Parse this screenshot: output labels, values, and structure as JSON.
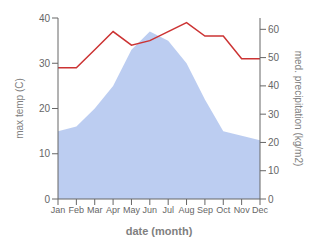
{
  "chart_data": {
    "type": "line",
    "x_label": "date (month)",
    "y_label": "max temp (C)",
    "y2_label": "med. precipitation (kg/m2)",
    "categories": [
      "Jan",
      "Feb",
      "Mar",
      "Apr",
      "May",
      "Jun",
      "Jul",
      "Aug",
      "Sep",
      "Oct",
      "Nov",
      "Dec"
    ],
    "series": [
      {
        "type": "area",
        "color": "#b0c4ee",
        "values": [
          15,
          16,
          20,
          25,
          33,
          37,
          35,
          30,
          22,
          15,
          14,
          13
        ]
      },
      {
        "type": "line",
        "color": "#cc3333",
        "values": [
          29,
          29,
          33,
          37,
          34,
          35,
          37,
          39,
          36,
          36,
          31,
          31
        ]
      }
    ],
    "ylim": [
      0,
      40
    ],
    "yticks": [
      0,
      10,
      20,
      30,
      40
    ],
    "y2lim": [
      0,
      64
    ],
    "y2ticks": [
      0,
      10,
      20,
      30,
      40,
      50,
      60
    ],
    "grid": false
  }
}
